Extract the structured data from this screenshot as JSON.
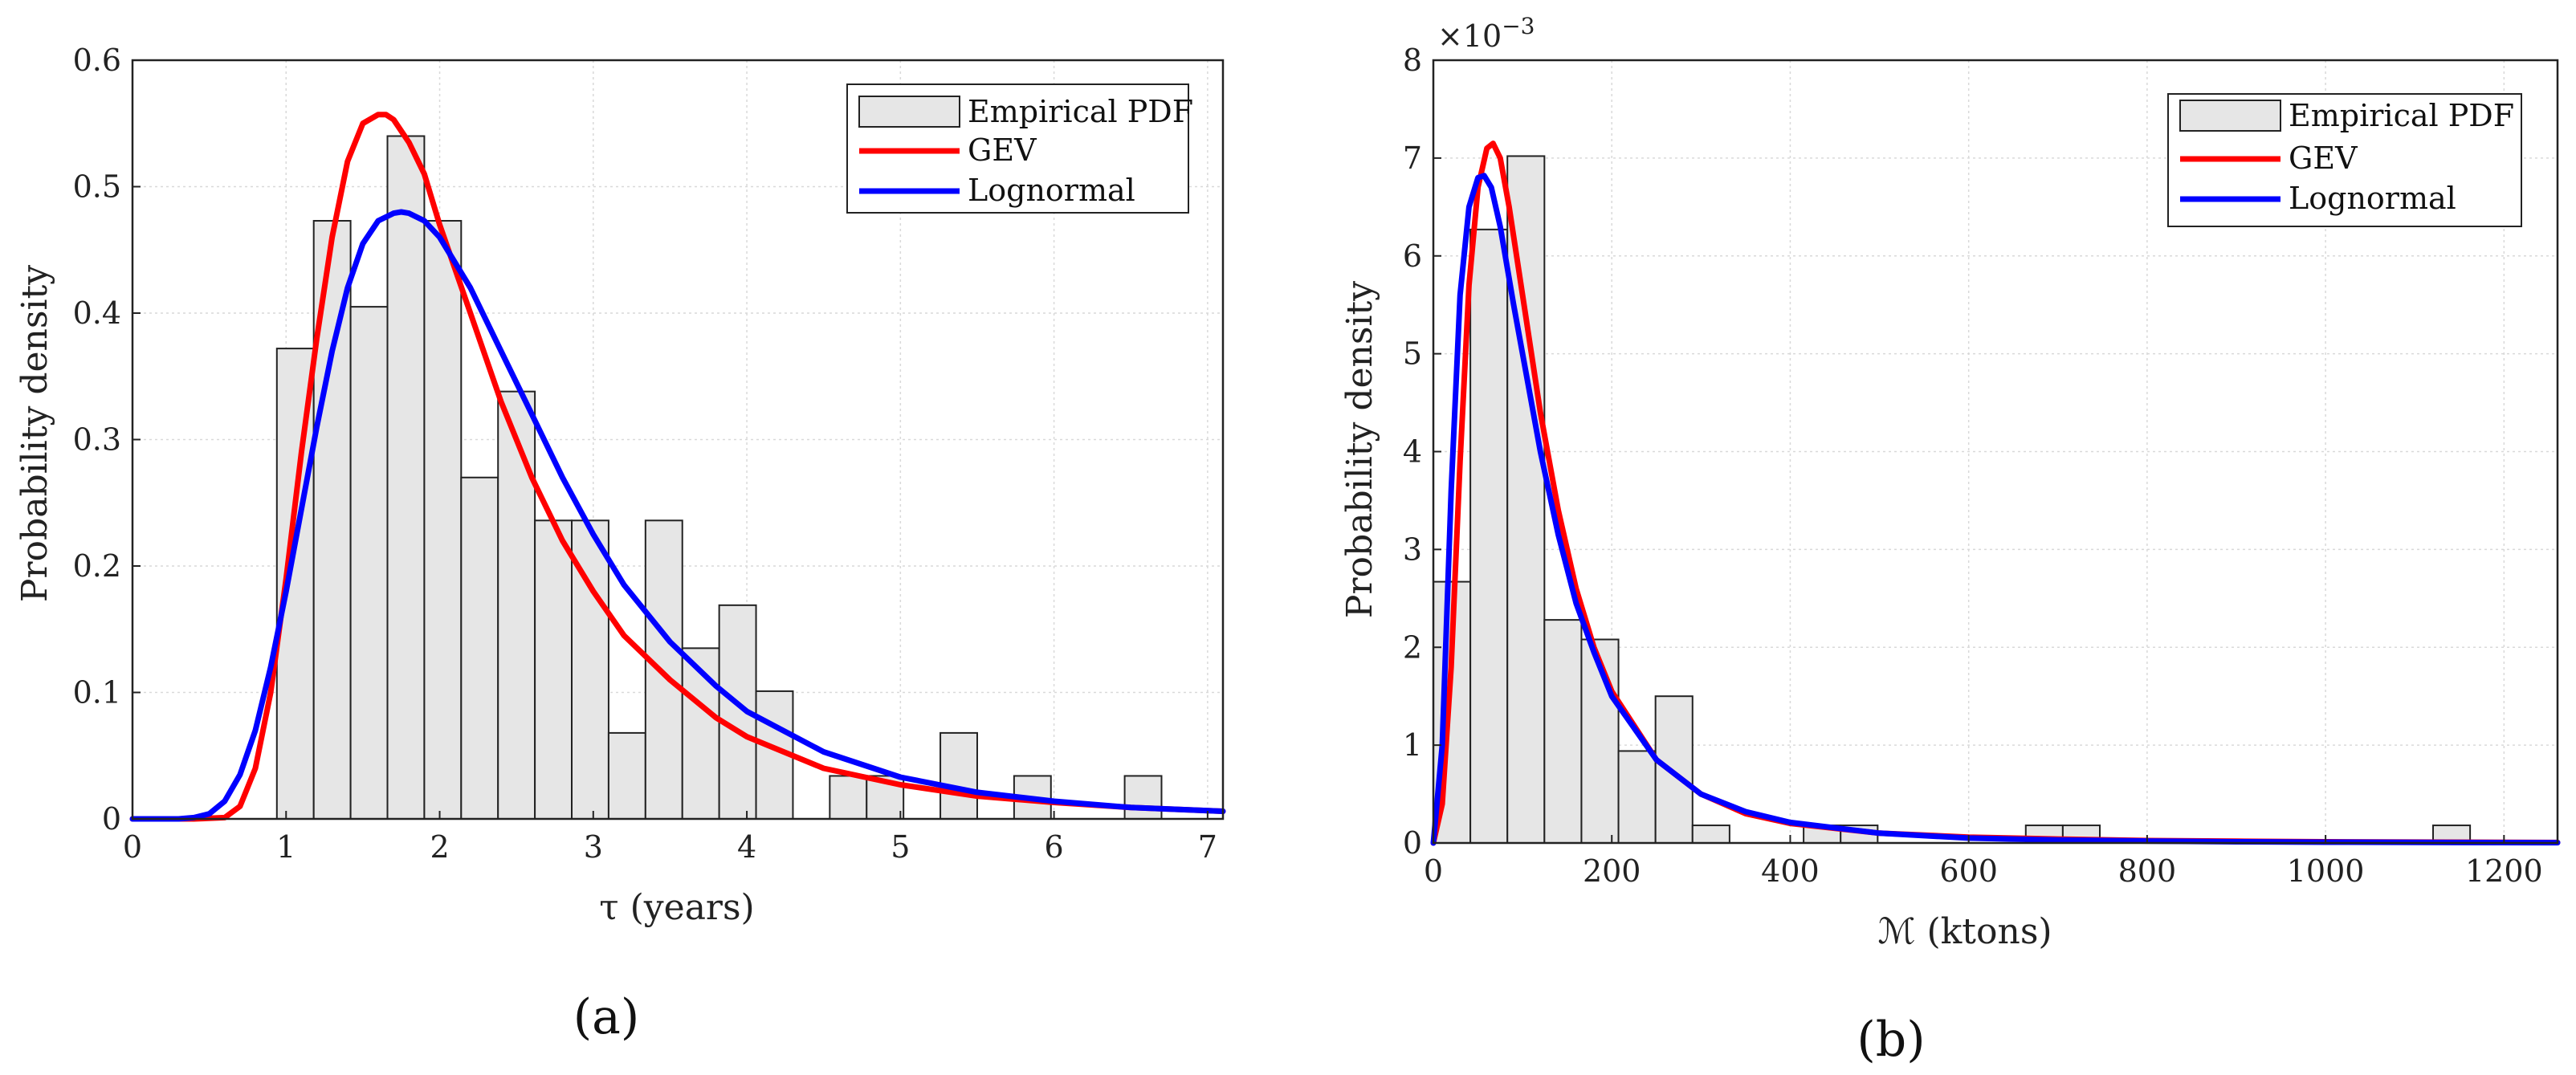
{
  "chart_data": [
    {
      "type": "bar",
      "panel_label": "(a)",
      "xlabel": "τ (years)",
      "ylabel": "Probability density",
      "xlim": [
        0,
        7.1
      ],
      "ylim": [
        0,
        0.6
      ],
      "xticks": [
        0,
        1,
        2,
        3,
        4,
        5,
        6,
        7
      ],
      "yticks": [
        0,
        0.1,
        0.2,
        0.3,
        0.4,
        0.5,
        0.6
      ],
      "grid": true,
      "legend_position": "top-right",
      "histogram": {
        "name": "Empirical PDF",
        "fill": "#e6e6e6",
        "bin_edges": [
          0.94,
          1.18,
          1.42,
          1.66,
          1.9,
          2.14,
          2.38,
          2.62,
          2.86,
          3.1,
          3.34,
          3.58,
          3.82,
          4.06,
          4.3,
          4.54,
          4.78,
          5.02,
          5.26,
          5.5,
          5.74,
          5.98,
          6.22,
          6.46,
          6.7
        ],
        "values": [
          0.372,
          0.473,
          0.405,
          0.54,
          0.473,
          0.27,
          0.338,
          0.236,
          0.236,
          0.068,
          0.236,
          0.135,
          0.169,
          0.101,
          0,
          0.034,
          0.034,
          0,
          0.068,
          0,
          0.034,
          0,
          0,
          0.034
        ]
      },
      "series": [
        {
          "name": "GEV",
          "color": "#ff0000",
          "x": [
            0,
            0.4,
            0.6,
            0.7,
            0.8,
            0.9,
            1.0,
            1.1,
            1.2,
            1.3,
            1.4,
            1.5,
            1.6,
            1.65,
            1.7,
            1.8,
            1.9,
            2.0,
            2.2,
            2.4,
            2.6,
            2.8,
            3.0,
            3.2,
            3.5,
            3.8,
            4.0,
            4.5,
            5.0,
            5.5,
            6.0,
            6.5,
            7.1
          ],
          "y": [
            0,
            0,
            0.001,
            0.01,
            0.04,
            0.1,
            0.19,
            0.29,
            0.38,
            0.46,
            0.52,
            0.55,
            0.557,
            0.557,
            0.553,
            0.535,
            0.51,
            0.47,
            0.4,
            0.33,
            0.27,
            0.22,
            0.18,
            0.145,
            0.11,
            0.08,
            0.065,
            0.04,
            0.027,
            0.018,
            0.013,
            0.009,
            0.006
          ]
        },
        {
          "name": "Lognormal",
          "color": "#0000ff",
          "x": [
            0,
            0.3,
            0.4,
            0.5,
            0.6,
            0.7,
            0.8,
            0.9,
            1.0,
            1.1,
            1.2,
            1.3,
            1.4,
            1.5,
            1.6,
            1.7,
            1.75,
            1.8,
            1.9,
            2.0,
            2.2,
            2.4,
            2.6,
            2.8,
            3.0,
            3.2,
            3.5,
            3.8,
            4.0,
            4.5,
            5.0,
            5.5,
            6.0,
            6.5,
            7.1
          ],
          "y": [
            0,
            0,
            0.001,
            0.004,
            0.014,
            0.035,
            0.07,
            0.12,
            0.18,
            0.245,
            0.31,
            0.37,
            0.42,
            0.455,
            0.473,
            0.479,
            0.48,
            0.479,
            0.473,
            0.46,
            0.42,
            0.37,
            0.32,
            0.27,
            0.225,
            0.185,
            0.14,
            0.105,
            0.085,
            0.053,
            0.033,
            0.021,
            0.014,
            0.009,
            0.006
          ]
        }
      ]
    },
    {
      "type": "bar",
      "panel_label": "(b)",
      "xlabel": "ℳ (ktons)",
      "ylabel": "Probability density",
      "y_multiplier": "×10",
      "y_multiplier_exp": "−3",
      "xlim": [
        0,
        1260
      ],
      "ylim": [
        0,
        8
      ],
      "xticks": [
        0,
        200,
        400,
        600,
        800,
        1000,
        1200
      ],
      "yticks": [
        0,
        1,
        2,
        3,
        4,
        5,
        6,
        7,
        8
      ],
      "grid": true,
      "legend_position": "top-right",
      "histogram": {
        "name": "Empirical PDF",
        "fill": "#e6e6e6",
        "bin_edges": [
          0,
          41.5,
          83,
          124.5,
          166,
          207.5,
          249,
          290.5,
          332,
          373.5,
          415,
          456.5,
          498,
          539.5,
          581,
          622.5,
          664,
          705.5,
          747,
          788.5,
          830,
          871.5,
          913,
          954.5,
          996,
          1037.5,
          1079,
          1120.5,
          1162,
          1203.5,
          1245
        ],
        "values": [
          2.67,
          6.27,
          7.02,
          2.28,
          2.08,
          0.94,
          1.5,
          0.18,
          0,
          0,
          0.18,
          0.18,
          0,
          0,
          0,
          0,
          0.18,
          0.18,
          0,
          0,
          0,
          0,
          0,
          0,
          0,
          0,
          0,
          0.18,
          0,
          0
        ]
      },
      "series": [
        {
          "name": "GEV",
          "color": "#ff0000",
          "x": [
            0,
            10,
            20,
            30,
            40,
            50,
            60,
            67,
            75,
            85,
            100,
            120,
            140,
            160,
            180,
            200,
            250,
            300,
            350,
            400,
            500,
            600,
            700,
            800,
            900,
            1000,
            1260
          ],
          "y": [
            0,
            0.4,
            1.8,
            3.9,
            5.7,
            6.7,
            7.1,
            7.15,
            7.0,
            6.5,
            5.6,
            4.4,
            3.4,
            2.6,
            2.0,
            1.55,
            0.85,
            0.5,
            0.3,
            0.2,
            0.1,
            0.06,
            0.04,
            0.025,
            0.018,
            0.012,
            0.005
          ]
        },
        {
          "name": "Lognormal",
          "color": "#0000ff",
          "x": [
            0,
            10,
            20,
            30,
            40,
            50,
            57,
            65,
            75,
            90,
            100,
            120,
            140,
            160,
            180,
            200,
            250,
            300,
            350,
            400,
            500,
            600,
            700,
            800,
            900,
            1000,
            1260
          ],
          "y": [
            0,
            1.0,
            3.6,
            5.6,
            6.5,
            6.8,
            6.82,
            6.7,
            6.3,
            5.5,
            5.0,
            4.0,
            3.15,
            2.45,
            1.95,
            1.5,
            0.85,
            0.5,
            0.32,
            0.21,
            0.1,
            0.05,
            0.03,
            0.02,
            0.012,
            0.008,
            0.003
          ]
        }
      ]
    }
  ]
}
